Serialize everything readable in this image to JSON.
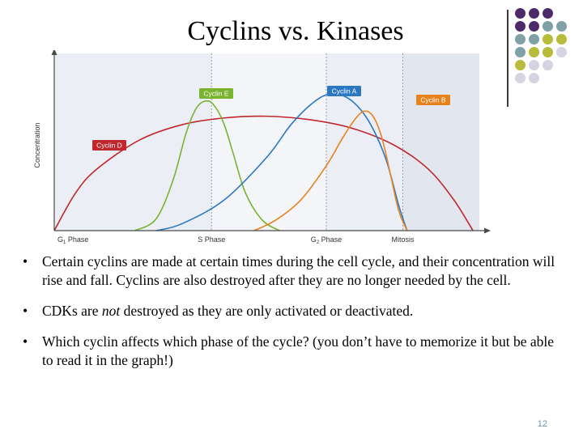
{
  "slide": {
    "title": "Cyclins vs. Kinases",
    "page_number": "12",
    "bullets": [
      {
        "pre": "Certain cyclins are made at certain times during the cell cycle, and their concentration will rise and fall.  Cyclins are also destroyed after they are no longer needed by the cell.",
        "em": "",
        "post": ""
      },
      {
        "pre": "CDKs are ",
        "em": "not",
        "post": " destroyed as they are only activated or deactivated."
      },
      {
        "pre": "Which cyclin affects which phase of the cycle? (you don’t have to memorize it but be able to read it in the graph!)",
        "em": "",
        "post": ""
      }
    ],
    "bullet_symbol": "•",
    "decoration_colors": [
      "#4e2a6b",
      "#7fa0a7",
      "#b9bb3a",
      "#d4d4e2"
    ]
  },
  "chart_data": {
    "type": "line",
    "title": "",
    "xlabel": "",
    "ylabel": "Concentration",
    "xlim": [
      0,
      100
    ],
    "ylim": [
      0,
      100
    ],
    "grid": false,
    "phases": [
      {
        "label": "G",
        "sub": "1",
        "suffix": " Phase",
        "start": 0,
        "end": 37
      },
      {
        "label": "S Phase",
        "sub": "",
        "suffix": "",
        "start": 37,
        "end": 64
      },
      {
        "label": "G",
        "sub": "2",
        "suffix": " Phase",
        "start": 64,
        "end": 82
      },
      {
        "label": "Mitosis",
        "sub": "",
        "suffix": "",
        "start": 82,
        "end": 100
      }
    ],
    "series": [
      {
        "name": "Cyclin D",
        "color": "#c0272d",
        "x": [
          0,
          5,
          10,
          20,
          30,
          40,
          50,
          60,
          70,
          80,
          88,
          94,
          98.5
        ],
        "y": [
          0,
          22,
          36,
          53,
          62,
          66,
          67,
          65,
          60,
          50,
          36,
          18,
          0
        ]
      },
      {
        "name": "Cyclin E",
        "color": "#7ab32e",
        "x": [
          19,
          24,
          28,
          31,
          33.5,
          36,
          38,
          40,
          42,
          45,
          49,
          53
        ],
        "y": [
          0,
          7,
          30,
          57,
          72,
          76,
          72,
          62,
          46,
          22,
          6,
          0
        ]
      },
      {
        "name": "Cyclin A",
        "color": "#2a78c0",
        "x": [
          24,
          30,
          40,
          50,
          56,
          62,
          66,
          70,
          74,
          78,
          81,
          83
        ],
        "y": [
          0,
          4,
          18,
          43,
          63,
          77,
          80,
          76,
          64,
          42,
          15,
          0
        ]
      },
      {
        "name": "Cyclin B",
        "color": "#e8821e",
        "x": [
          47,
          52,
          58,
          64,
          68,
          71,
          73,
          75,
          77,
          79,
          81,
          83
        ],
        "y": [
          0,
          6,
          18,
          38,
          55,
          66,
          70,
          67,
          55,
          34,
          12,
          0
        ]
      }
    ]
  }
}
